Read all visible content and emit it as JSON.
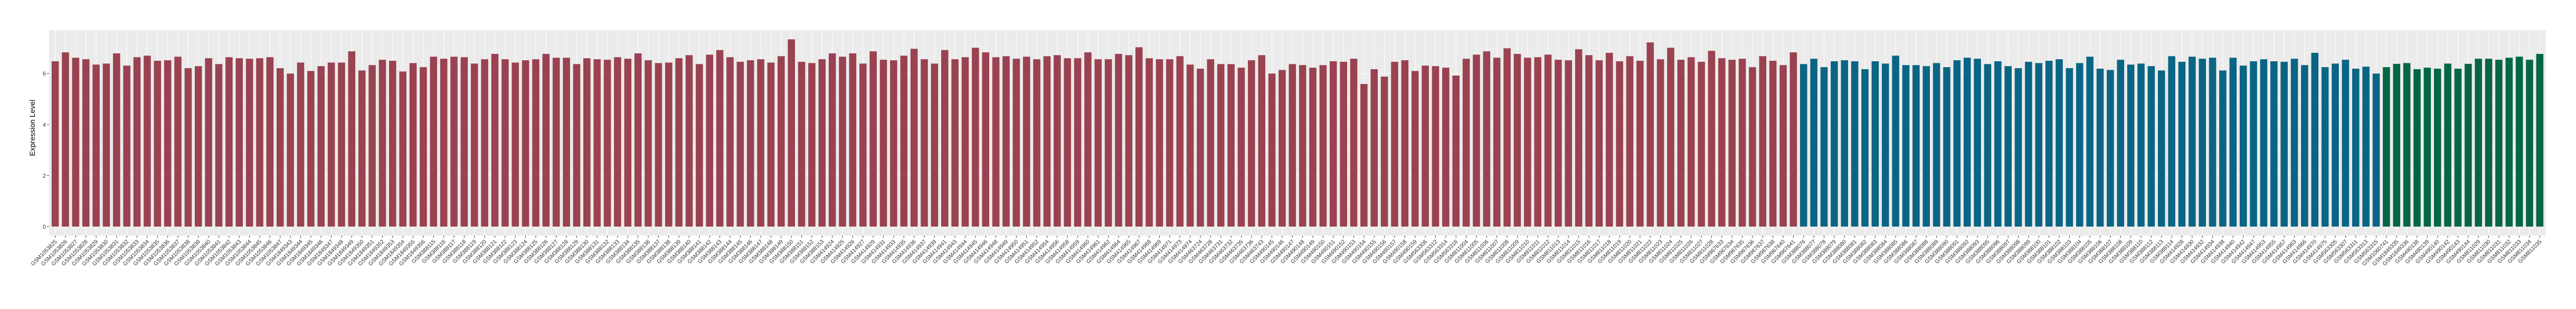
{
  "chart_data": {
    "type": "bar",
    "title": "",
    "xlabel": "",
    "ylabel": "Expression Level",
    "ylim": [
      0,
      7.7
    ],
    "yticks": [
      0,
      2,
      4,
      6
    ],
    "grid": true,
    "legend": "none",
    "colors": {
      "red": "#9a4250",
      "blue": "#0a6584",
      "green": "#046645",
      "panel": "#ebebeb",
      "grid": "#ffffff"
    },
    "groups": [
      {
        "color": "red",
        "categories": [
          "GSM1053825",
          "GSM1053826",
          "GSM1053827",
          "GSM1053828",
          "GSM1053829",
          "GSM1053830",
          "GSM1053831",
          "GSM1053832",
          "GSM1053833",
          "GSM1053834",
          "GSM1053835",
          "GSM1053836",
          "GSM1053837",
          "GSM1053838",
          "GSM1053839",
          "GSM1053840",
          "GSM1053841",
          "GSM1053842",
          "GSM1053843",
          "GSM1053844",
          "GSM1053845",
          "GSM1053846",
          "GSM1053847",
          "GSM1849343",
          "GSM1849344",
          "GSM1849345",
          "GSM1849346",
          "GSM1849347",
          "GSM1849348",
          "GSM1849349",
          "GSM1849350",
          "GSM1849351",
          "GSM1849352",
          "GSM1849353",
          "GSM1849354",
          "GSM1849355",
          "GSM1849356",
          "GSM388115",
          "GSM388116",
          "GSM388117",
          "GSM388118",
          "GSM388119",
          "GSM388120",
          "GSM388121",
          "GSM388122",
          "GSM388123",
          "GSM388124",
          "GSM388125",
          "GSM388126",
          "GSM388127",
          "GSM388128",
          "GSM388129",
          "GSM388130",
          "GSM388131",
          "GSM388132",
          "GSM388133",
          "GSM388134",
          "GSM388135",
          "GSM388136",
          "GSM388137",
          "GSM388138",
          "GSM388139",
          "GSM388140",
          "GSM388141",
          "GSM388142",
          "GSM388143",
          "GSM388144",
          "GSM388145",
          "GSM388146",
          "GSM388147",
          "GSM388148",
          "GSM388149",
          "GSM388150",
          "GSM388151",
          "GSM388152",
          "GSM388153",
          "GSM414924",
          "GSM414925",
          "GSM414926",
          "GSM414927",
          "GSM414929",
          "GSM414931",
          "GSM414933",
          "GSM414935",
          "GSM414936",
          "GSM414937",
          "GSM414939",
          "GSM414941",
          "GSM414943",
          "GSM414944",
          "GSM414945",
          "GSM414946",
          "GSM414948",
          "GSM414949",
          "GSM414950",
          "GSM414951",
          "GSM414952",
          "GSM414954",
          "GSM414956",
          "GSM414958",
          "GSM414959",
          "GSM414960",
          "GSM414961",
          "GSM414962",
          "GSM414964",
          "GSM414965",
          "GSM414967",
          "GSM414968",
          "GSM414969",
          "GSM414971",
          "GSM414973",
          "GSM414974",
          "GSM463724",
          "GSM463728",
          "GSM463731",
          "GSM463732",
          "GSM463735",
          "GSM463736",
          "GSM463743",
          "GSM490145",
          "GSM490146",
          "GSM490147",
          "GSM490148",
          "GSM490149",
          "GSM490150",
          "GSM490151",
          "GSM490152",
          "GSM490153",
          "GSM490154",
          "GSM490155",
          "GSM490156",
          "GSM490157",
          "GSM490158",
          "GSM490159",
          "GSM563306",
          "GSM563312",
          "GSM563314",
          "GSM563316",
          "GSM811004",
          "GSM811005",
          "GSM811006",
          "GSM811007",
          "GSM811008",
          "GSM811009",
          "GSM811010",
          "GSM811011",
          "GSM811012",
          "GSM811013",
          "GSM811014",
          "GSM811015",
          "GSM811016",
          "GSM811017",
          "GSM811018",
          "GSM811019",
          "GSM811020",
          "GSM811021",
          "GSM811022",
          "GSM811023",
          "GSM811024",
          "GSM811025",
          "GSM811026",
          "GSM811027",
          "GSM811028",
          "GSM967633",
          "GSM967634",
          "GSM967635",
          "GSM967636",
          "GSM967637",
          "GSM967638",
          "GSM967640",
          "GSM967641"
        ],
        "values": [
          6.48,
          6.83,
          6.62,
          6.56,
          6.35,
          6.39,
          6.79,
          6.31,
          6.64,
          6.7,
          6.5,
          6.52,
          6.66,
          6.21,
          6.29,
          6.6,
          6.37,
          6.64,
          6.6,
          6.58,
          6.6,
          6.64,
          6.21,
          6.0,
          6.43,
          6.1,
          6.29,
          6.43,
          6.43,
          6.87,
          6.12,
          6.33,
          6.54,
          6.5,
          6.08,
          6.41,
          6.25,
          6.66,
          6.58,
          6.66,
          6.64,
          6.39,
          6.56,
          6.77,
          6.56,
          6.43,
          6.52,
          6.56,
          6.77,
          6.62,
          6.62,
          6.37,
          6.6,
          6.56,
          6.54,
          6.64,
          6.58,
          6.79,
          6.52,
          6.41,
          6.43,
          6.6,
          6.72,
          6.37,
          6.74,
          6.92,
          6.64,
          6.46,
          6.52,
          6.56,
          6.43,
          6.68,
          7.34,
          6.46,
          6.41,
          6.56,
          6.79,
          6.66,
          6.79,
          6.39,
          6.87,
          6.54,
          6.52,
          6.7,
          6.97,
          6.56,
          6.39,
          6.92,
          6.56,
          6.64,
          7.01,
          6.83,
          6.64,
          6.68,
          6.58,
          6.66,
          6.56,
          6.68,
          6.72,
          6.6,
          6.6,
          6.83,
          6.56,
          6.56,
          6.77,
          6.72,
          7.03,
          6.6,
          6.56,
          6.56,
          6.68,
          6.35,
          6.19,
          6.56,
          6.37,
          6.37,
          6.23,
          6.52,
          6.72,
          6.0,
          6.14,
          6.37,
          6.33,
          6.23,
          6.33,
          6.48,
          6.46,
          6.58,
          5.59,
          6.17,
          5.88,
          6.46,
          6.52,
          6.1,
          6.31,
          6.29,
          6.23,
          5.92,
          6.58,
          6.74,
          6.87,
          6.62,
          6.99,
          6.77,
          6.62,
          6.64,
          6.74,
          6.54,
          6.52,
          6.95,
          6.72,
          6.52,
          6.81,
          6.48,
          6.68,
          6.5,
          7.22,
          6.56,
          7.01,
          6.54,
          6.64,
          6.46,
          6.89,
          6.6,
          6.54,
          6.58,
          6.25,
          6.68,
          6.5,
          6.33,
          6.83
        ]
      },
      {
        "color": "blue",
        "categories": [
          "GSM388076",
          "GSM388077",
          "GSM388078",
          "GSM388079",
          "GSM388080",
          "GSM388081",
          "GSM388082",
          "GSM388083",
          "GSM388084",
          "GSM388085",
          "GSM388086",
          "GSM388087",
          "GSM388088",
          "GSM388089",
          "GSM388090",
          "GSM388091",
          "GSM388092",
          "GSM388093",
          "GSM388095",
          "GSM388096",
          "GSM388097",
          "GSM388098",
          "GSM388099",
          "GSM388100",
          "GSM388101",
          "GSM388102",
          "GSM388103",
          "GSM388104",
          "GSM388105",
          "GSM388106",
          "GSM388107",
          "GSM388108",
          "GSM388109",
          "GSM388110",
          "GSM388112",
          "GSM388113",
          "GSM388114",
          "GSM414928",
          "GSM414930",
          "GSM414932",
          "GSM414934",
          "GSM414938",
          "GSM414940",
          "GSM414942",
          "GSM414947",
          "GSM414953",
          "GSM414955",
          "GSM414957",
          "GSM414963",
          "GSM414966",
          "GSM414970",
          "GSM414975",
          "GSM563305",
          "GSM563307",
          "GSM563311",
          "GSM563313",
          "GSM563315"
        ],
        "values": [
          6.37,
          6.58,
          6.25,
          6.48,
          6.52,
          6.48,
          6.17,
          6.48,
          6.39,
          6.7,
          6.33,
          6.33,
          6.29,
          6.41,
          6.25,
          6.52,
          6.62,
          6.58,
          6.37,
          6.48,
          6.29,
          6.21,
          6.46,
          6.41,
          6.5,
          6.56,
          6.21,
          6.41,
          6.66,
          6.19,
          6.14,
          6.54,
          6.35,
          6.39,
          6.29,
          6.12,
          6.68,
          6.46,
          6.66,
          6.58,
          6.62,
          6.12,
          6.62,
          6.31,
          6.48,
          6.56,
          6.48,
          6.46,
          6.58,
          6.33,
          6.81,
          6.25,
          6.39,
          6.54,
          6.19,
          6.27,
          6.0
        ]
      },
      {
        "color": "green",
        "categories": [
          "GSM1060741",
          "GSM1849335",
          "GSM1849336",
          "GSM490138",
          "GSM490139",
          "GSM490140",
          "GSM490142",
          "GSM490143",
          "GSM490144",
          "GSM811029",
          "GSM811030",
          "GSM811031",
          "GSM811032",
          "GSM811033",
          "GSM811034",
          "GSM811035"
        ],
        "values": [
          6.25,
          6.38,
          6.41,
          6.17,
          6.23,
          6.19,
          6.39,
          6.19,
          6.38,
          6.58,
          6.58,
          6.54,
          6.62,
          6.66,
          6.54,
          6.77
        ]
      }
    ]
  }
}
